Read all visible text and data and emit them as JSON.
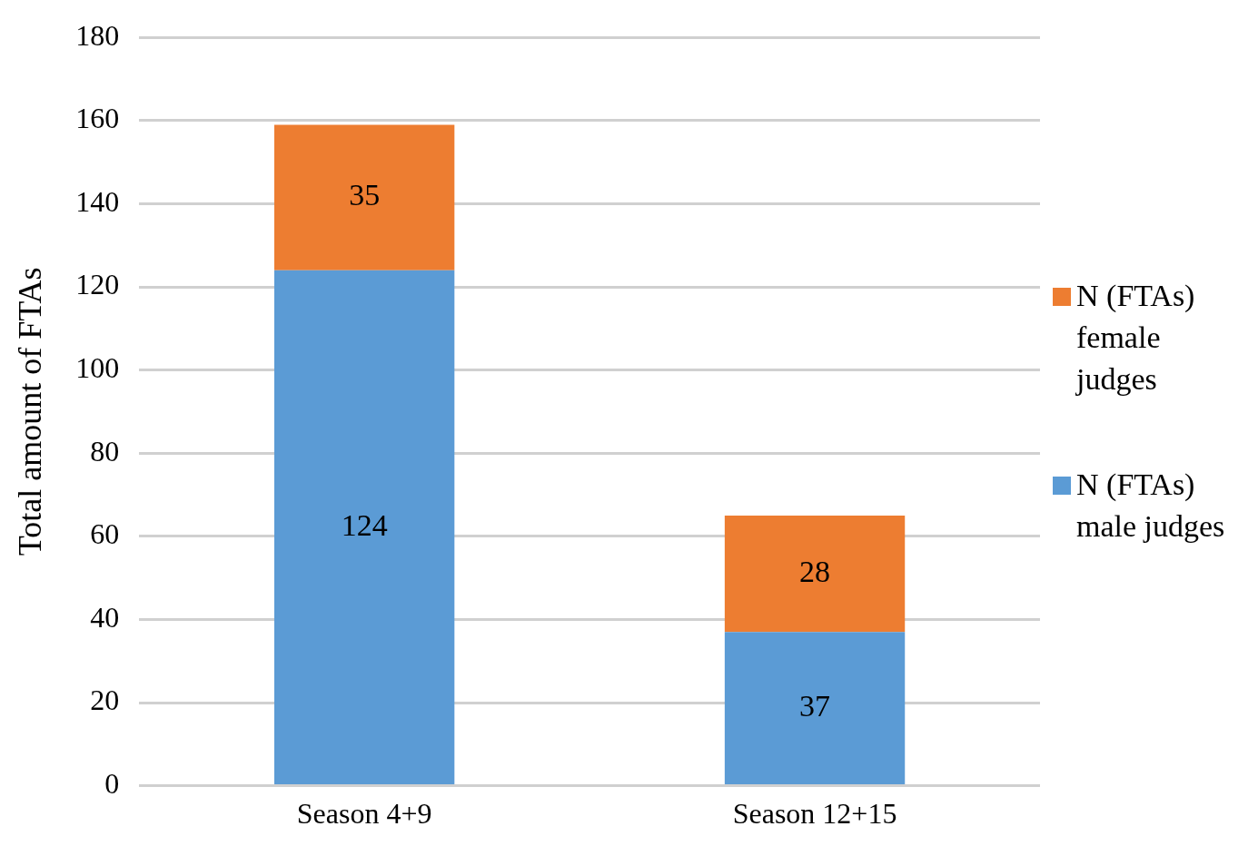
{
  "chart_data": {
    "type": "bar",
    "stacked": true,
    "ylabel": "Total amount of FTAs",
    "categories": [
      "Season 4+9",
      "Season 12+15"
    ],
    "series": [
      {
        "name": "N (FTAs) male judges",
        "color": "#5b9bd5",
        "values": [
          124,
          37
        ]
      },
      {
        "name": "N (FTAs) female judges",
        "color": "#ed7d31",
        "values": [
          35,
          28
        ]
      }
    ],
    "ylim": [
      0,
      180
    ],
    "yticks": [
      0,
      20,
      40,
      60,
      80,
      100,
      120,
      140,
      160,
      180
    ],
    "grid": "y",
    "legend": "right",
    "data_labels": true
  }
}
